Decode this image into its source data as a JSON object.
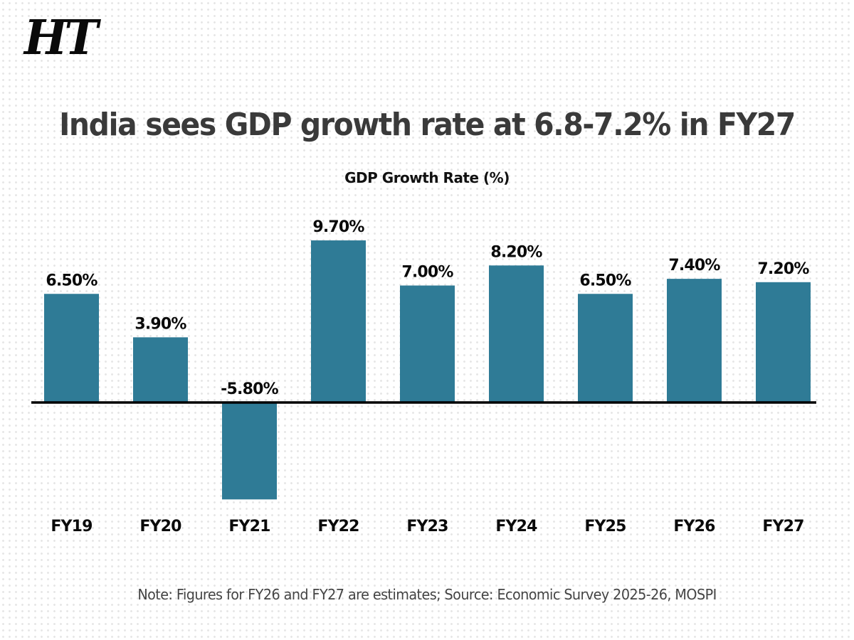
{
  "logo": {
    "text": "HT"
  },
  "chart_data": {
    "type": "bar",
    "title": "India sees GDP growth rate at 6.8-7.2% in FY27",
    "subtitle": "GDP Growth Rate (%)",
    "xlabel": "",
    "ylabel": "GDP Growth Rate (%)",
    "categories": [
      "FY19",
      "FY20",
      "FY21",
      "FY22",
      "FY23",
      "FY24",
      "FY25",
      "FY26",
      "FY27"
    ],
    "values": [
      6.5,
      3.9,
      -5.8,
      9.7,
      7.0,
      8.2,
      6.5,
      7.4,
      7.2
    ],
    "data_labels": [
      "6.50%",
      "3.90%",
      "-5.80%",
      "9.70%",
      "7.00%",
      "8.20%",
      "6.50%",
      "7.40%",
      "7.20%"
    ],
    "ylim": [
      -5.8,
      9.7
    ],
    "grid": false,
    "legend": "none",
    "bar_color": "#2f7b96",
    "baseline_color": "#000000",
    "note": "Note: Figures for FY26 and FY27 are estimates; Source: Economic Survey 2025-26, MOSPI"
  }
}
